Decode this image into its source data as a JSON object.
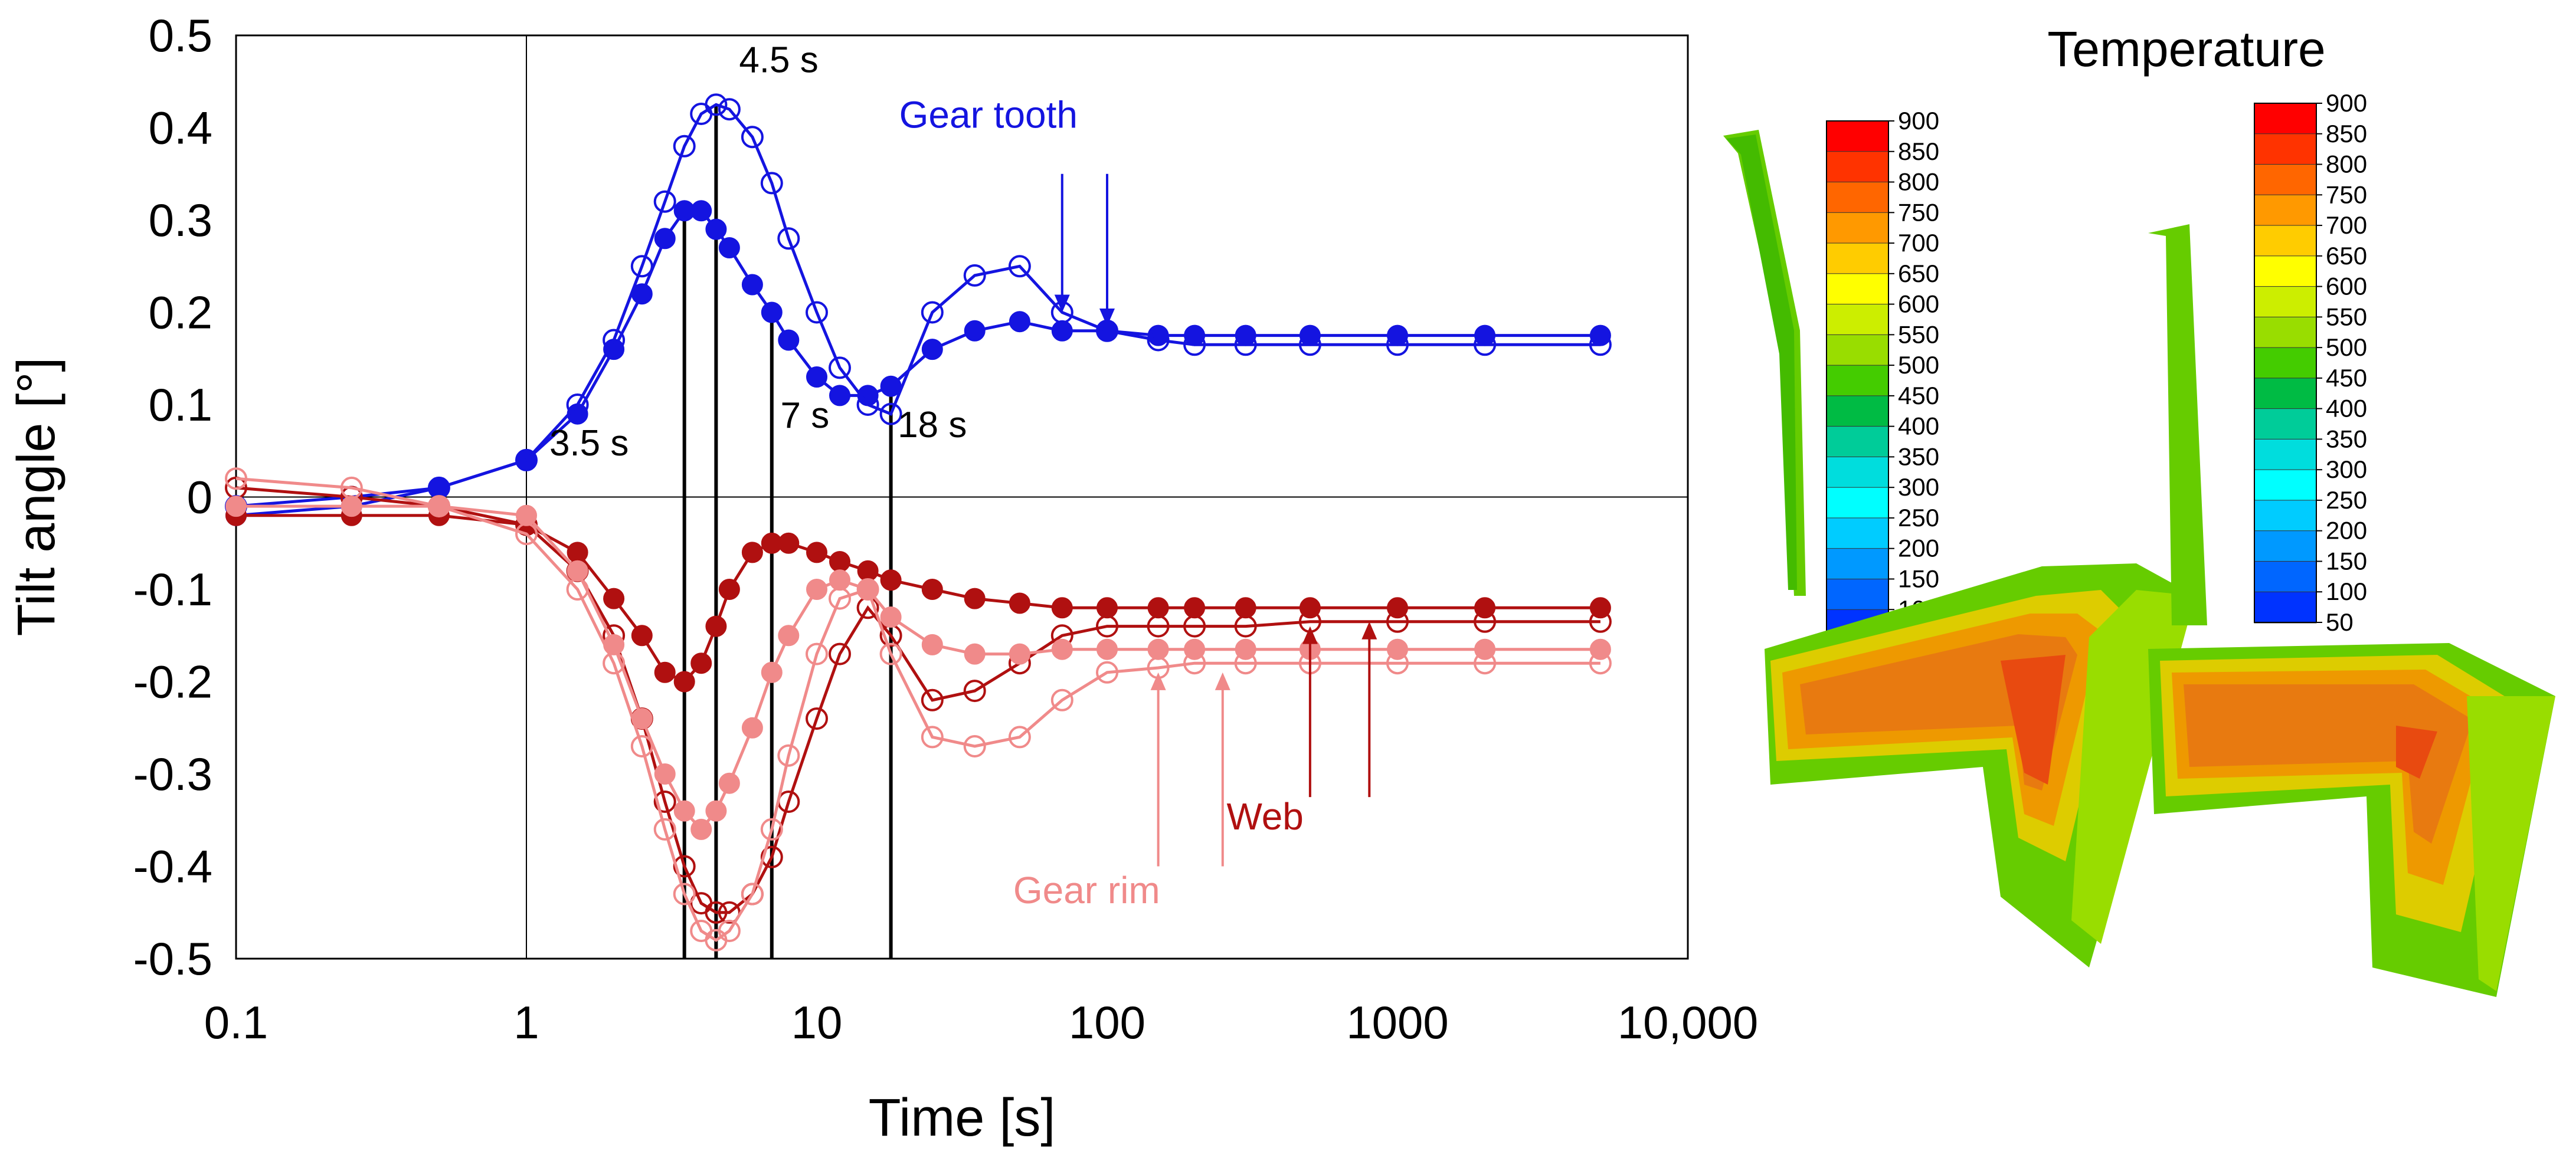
{
  "chart_data": {
    "type": "scatter",
    "xscale": "log",
    "xlim": [
      0.1,
      10000
    ],
    "ylim": [
      -0.5,
      0.5
    ],
    "xlabel": "Time [s]",
    "ylabel": "Tilt angle [°]",
    "xticks": [
      0.1,
      1,
      10,
      100,
      1000,
      10000
    ],
    "xtick_labels": [
      "0.1",
      "1",
      "10",
      "100",
      "1000",
      "10,000"
    ],
    "yticks": [
      0.5,
      0.4,
      0.3,
      0.2,
      0.1,
      0,
      -0.1,
      -0.2,
      -0.3,
      -0.4,
      -0.5
    ],
    "ytick_labels": [
      "0.5",
      "0.4",
      "0.3",
      "0.2",
      "0.1",
      "0",
      "-0.1",
      "-0.2",
      "-0.3",
      "-0.4",
      "-0.5"
    ],
    "colors": {
      "gear_tooth": "#1414e0",
      "web": "#b01010",
      "gear_rim": "#f08a8a"
    },
    "series": [
      {
        "group": "gear_tooth",
        "marker": "filled",
        "x": [
          0.1,
          0.25,
          0.5,
          1,
          1.5,
          2,
          2.5,
          3,
          3.5,
          4,
          4.5,
          5,
          6,
          7,
          8,
          10,
          12,
          15,
          18,
          25,
          35,
          50,
          70,
          100,
          150,
          200,
          300,
          500,
          1000,
          2000,
          5000
        ],
        "y": [
          -0.02,
          -0.01,
          0.01,
          0.04,
          0.09,
          0.16,
          0.22,
          0.28,
          0.31,
          0.31,
          0.29,
          0.27,
          0.23,
          0.2,
          0.17,
          0.13,
          0.11,
          0.11,
          0.12,
          0.16,
          0.18,
          0.19,
          0.18,
          0.18,
          0.175,
          0.175,
          0.175,
          0.175,
          0.175,
          0.175,
          0.175
        ]
      },
      {
        "group": "gear_tooth",
        "marker": "open",
        "x": [
          0.1,
          0.25,
          0.5,
          1,
          1.5,
          2,
          2.5,
          3,
          3.5,
          4,
          4.5,
          5,
          6,
          7,
          8,
          10,
          12,
          15,
          18,
          25,
          35,
          50,
          70,
          100,
          150,
          200,
          300,
          500,
          1000,
          2000,
          5000
        ],
        "y": [
          -0.01,
          0.0,
          0.01,
          0.04,
          0.1,
          0.17,
          0.25,
          0.32,
          0.38,
          0.415,
          0.425,
          0.42,
          0.39,
          0.34,
          0.28,
          0.2,
          0.14,
          0.1,
          0.09,
          0.2,
          0.24,
          0.25,
          0.2,
          0.18,
          0.17,
          0.165,
          0.165,
          0.165,
          0.165,
          0.165,
          0.165
        ]
      },
      {
        "group": "web",
        "marker": "filled",
        "x": [
          0.1,
          0.25,
          0.5,
          1,
          1.5,
          2,
          2.5,
          3,
          3.5,
          4,
          4.5,
          5,
          6,
          7,
          8,
          10,
          12,
          15,
          18,
          25,
          35,
          50,
          70,
          100,
          150,
          200,
          300,
          500,
          1000,
          2000,
          5000
        ],
        "y": [
          -0.02,
          -0.02,
          -0.02,
          -0.03,
          -0.06,
          -0.11,
          -0.15,
          -0.19,
          -0.2,
          -0.18,
          -0.14,
          -0.1,
          -0.06,
          -0.05,
          -0.05,
          -0.06,
          -0.07,
          -0.08,
          -0.09,
          -0.1,
          -0.11,
          -0.115,
          -0.12,
          -0.12,
          -0.12,
          -0.12,
          -0.12,
          -0.12,
          -0.12,
          -0.12,
          -0.12
        ]
      },
      {
        "group": "web",
        "marker": "open",
        "x": [
          0.1,
          0.25,
          0.5,
          1,
          1.5,
          2,
          2.5,
          3,
          3.5,
          4,
          4.5,
          5,
          6,
          7,
          8,
          10,
          12,
          15,
          18,
          25,
          35,
          50,
          70,
          100,
          150,
          200,
          300,
          500,
          1000,
          2000,
          5000
        ],
        "y": [
          0.01,
          0.0,
          -0.01,
          -0.03,
          -0.08,
          -0.15,
          -0.24,
          -0.33,
          -0.4,
          -0.44,
          -0.45,
          -0.45,
          -0.43,
          -0.39,
          -0.33,
          -0.24,
          -0.17,
          -0.12,
          -0.15,
          -0.22,
          -0.21,
          -0.18,
          -0.15,
          -0.14,
          -0.14,
          -0.14,
          -0.14,
          -0.135,
          -0.135,
          -0.135,
          -0.135
        ]
      },
      {
        "group": "gear_rim",
        "marker": "filled",
        "x": [
          0.1,
          0.25,
          0.5,
          1,
          1.5,
          2,
          2.5,
          3,
          3.5,
          4,
          4.5,
          5,
          6,
          7,
          8,
          10,
          12,
          15,
          18,
          25,
          35,
          50,
          70,
          100,
          150,
          200,
          300,
          500,
          1000,
          2000,
          5000
        ],
        "y": [
          -0.01,
          -0.01,
          -0.01,
          -0.02,
          -0.08,
          -0.16,
          -0.24,
          -0.3,
          -0.34,
          -0.36,
          -0.34,
          -0.31,
          -0.25,
          -0.19,
          -0.15,
          -0.1,
          -0.09,
          -0.1,
          -0.13,
          -0.16,
          -0.17,
          -0.17,
          -0.165,
          -0.165,
          -0.165,
          -0.165,
          -0.165,
          -0.165,
          -0.165,
          -0.165,
          -0.165
        ]
      },
      {
        "group": "gear_rim",
        "marker": "open",
        "x": [
          0.1,
          0.25,
          0.5,
          1,
          1.5,
          2,
          2.5,
          3,
          3.5,
          4,
          4.5,
          5,
          6,
          7,
          8,
          10,
          12,
          15,
          18,
          25,
          35,
          50,
          70,
          100,
          150,
          200,
          300,
          500,
          1000,
          2000,
          5000
        ],
        "y": [
          0.02,
          0.01,
          -0.01,
          -0.04,
          -0.1,
          -0.18,
          -0.27,
          -0.36,
          -0.43,
          -0.47,
          -0.48,
          -0.47,
          -0.43,
          -0.36,
          -0.28,
          -0.17,
          -0.11,
          -0.1,
          -0.17,
          -0.26,
          -0.27,
          -0.26,
          -0.22,
          -0.19,
          -0.185,
          -0.18,
          -0.18,
          -0.18,
          -0.18,
          -0.18,
          -0.18
        ]
      }
    ],
    "vertical_lines": [
      3.5,
      4.5,
      7,
      18
    ],
    "vertical_line_bottom": -0.5,
    "vertical_line_tops": [
      0.31,
      0.425,
      0.2,
      0.11
    ],
    "annotations": [
      {
        "text": "3.5 s",
        "x": 1.2,
        "y": 0.045
      },
      {
        "text": "4.5 s",
        "x": 5.4,
        "y": 0.46
      },
      {
        "text": "7 s",
        "x": 7.5,
        "y": 0.075
      },
      {
        "text": "18 s",
        "x": 19,
        "y": 0.065
      }
    ],
    "series_labels": [
      {
        "text": "Gear tooth",
        "group": "gear_tooth",
        "x": 39,
        "y": 0.4
      },
      {
        "text": "Web",
        "group": "web",
        "x": 350,
        "y": -0.36
      },
      {
        "text": "Gear rim",
        "group": "gear_rim",
        "x": 85,
        "y": -0.44
      }
    ],
    "label_arrows": [
      {
        "group": "gear_tooth",
        "x": 70,
        "from": 0.35,
        "to": 0.2
      },
      {
        "group": "gear_tooth",
        "x": 100,
        "from": 0.35,
        "to": 0.185
      },
      {
        "group": "web",
        "x": 500,
        "from": -0.325,
        "to": -0.14
      },
      {
        "group": "web",
        "x": 800,
        "from": -0.325,
        "to": -0.135
      },
      {
        "group": "gear_rim",
        "x": 150,
        "from": -0.4,
        "to": -0.19
      },
      {
        "group": "gear_rim",
        "x": 250,
        "from": -0.4,
        "to": -0.19
      }
    ]
  },
  "contour_panel": {
    "title": "Temperature",
    "colorbar_labels": [
      "900",
      "850",
      "800",
      "750",
      "700",
      "650",
      "600",
      "550",
      "500",
      "450",
      "400",
      "350",
      "300",
      "250",
      "200",
      "150",
      "100",
      "50"
    ],
    "colorbar_colors": [
      "#ff0000",
      "#ff3300",
      "#ff6600",
      "#ff9900",
      "#ffcc00",
      "#ffff00",
      "#ccee00",
      "#99dd00",
      "#44cc00",
      "#00bb44",
      "#00cc99",
      "#00dddd",
      "#00ffff",
      "#00ccff",
      "#0099ff",
      "#0066ff",
      "#0033ff",
      "#0000ff"
    ]
  }
}
